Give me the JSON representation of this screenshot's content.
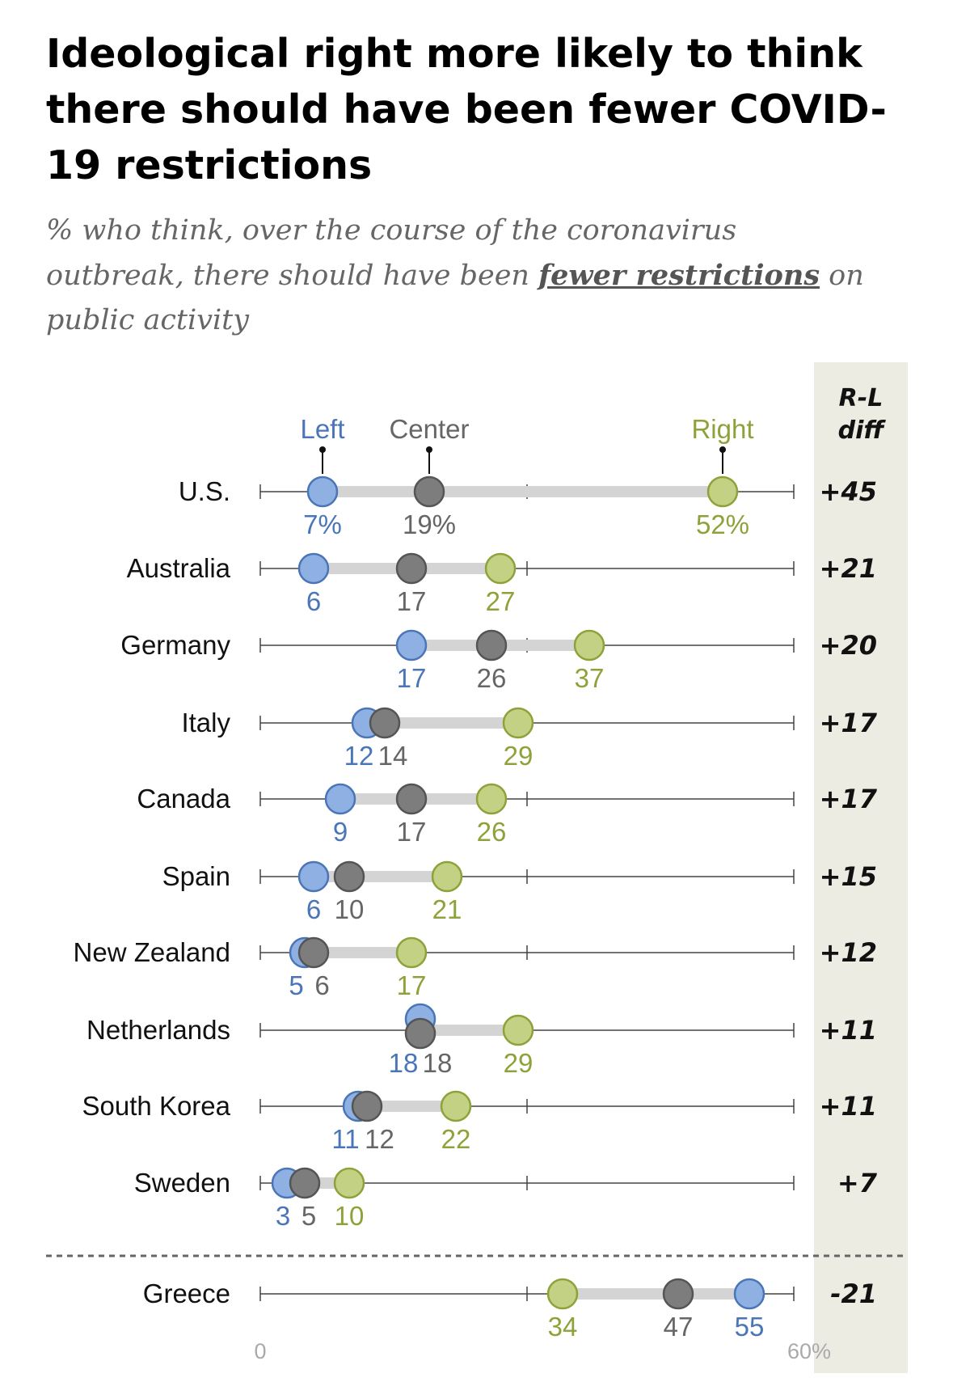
{
  "title": "Ideological right more likely to think there should have been fewer COVID-19 restrictions",
  "subtitle": {
    "before": "% who think, over the course of the coronavirus outbreak, there should have been ",
    "emphasis": "fewer restrictions",
    "after": " on public activity"
  },
  "colors": {
    "left": "#8fb0e3",
    "left_text": "#4a76b8",
    "left_stroke": "#4a76b8",
    "center": "#7d7d7d",
    "center_text": "#666666",
    "center_stroke": "#555555",
    "right": "#c2d184",
    "right_text": "#8ea23a",
    "right_stroke": "#8ea23a",
    "diff_panel": "#ecece2",
    "range_bar": "#d4d4d4",
    "axis": "#444444"
  },
  "chart_data": {
    "type": "dot",
    "xlim": [
      0,
      60
    ],
    "x_tick_labels": [
      "0",
      "60%"
    ],
    "series": [
      {
        "key": "left",
        "name": "Left"
      },
      {
        "key": "center",
        "name": "Center"
      },
      {
        "key": "right",
        "name": "Right"
      }
    ],
    "diff_header": [
      "R-L",
      "diff"
    ],
    "rows": [
      {
        "country": "U.S.",
        "left": 7,
        "center": 19,
        "right": 52,
        "diff": "+45",
        "labels": [
          "7%",
          "19%",
          "52%"
        ]
      },
      {
        "country": "Australia",
        "left": 6,
        "center": 17,
        "right": 27,
        "diff": "+21",
        "labels": [
          "6",
          "17",
          "27"
        ]
      },
      {
        "country": "Germany",
        "left": 17,
        "center": 26,
        "right": 37,
        "diff": "+20",
        "labels": [
          "17",
          "26",
          "37"
        ]
      },
      {
        "country": "Italy",
        "left": 12,
        "center": 14,
        "right": 29,
        "diff": "+17",
        "labels": [
          "12",
          "14",
          "29"
        ]
      },
      {
        "country": "Canada",
        "left": 9,
        "center": 17,
        "right": 26,
        "diff": "+17",
        "labels": [
          "9",
          "17",
          "26"
        ]
      },
      {
        "country": "Spain",
        "left": 6,
        "center": 10,
        "right": 21,
        "diff": "+15",
        "labels": [
          "6",
          "10",
          "21"
        ]
      },
      {
        "country": "New Zealand",
        "left": 5,
        "center": 6,
        "right": 17,
        "diff": "+12",
        "labels": [
          "5",
          "6",
          "17"
        ]
      },
      {
        "country": "Netherlands",
        "left": 18,
        "center": 18,
        "right": 29,
        "diff": "+11",
        "labels": [
          "18",
          "18",
          "29"
        ]
      },
      {
        "country": "South Korea",
        "left": 11,
        "center": 12,
        "right": 22,
        "diff": "+11",
        "labels": [
          "11",
          "12",
          "22"
        ]
      },
      {
        "country": "Sweden",
        "left": 3,
        "center": 5,
        "right": 10,
        "diff": "+7",
        "labels": [
          "3",
          "5",
          "10"
        ]
      },
      {
        "country": "Greece",
        "left": 55,
        "center": 47,
        "right": 34,
        "diff": "-21",
        "labels": [
          "55",
          "47",
          "34"
        ]
      }
    ]
  }
}
